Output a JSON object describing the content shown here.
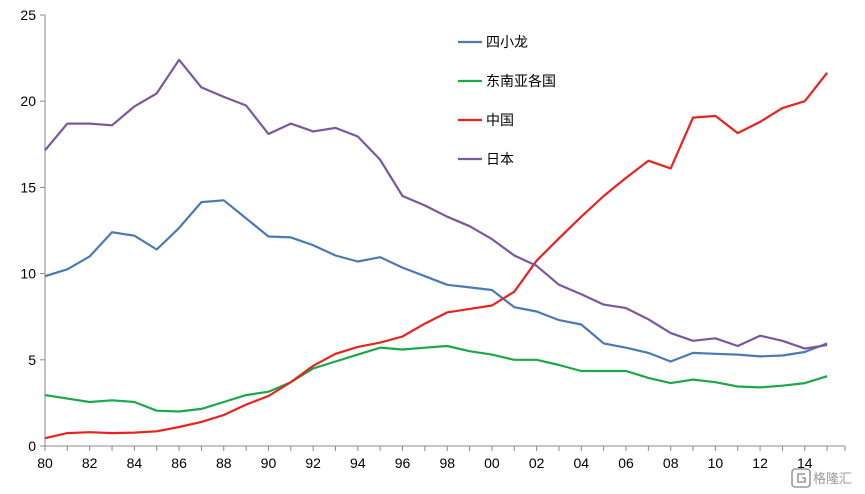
{
  "chart_data": {
    "type": "line",
    "title": "",
    "xlabel": "",
    "ylabel": "",
    "x": [
      1980,
      1981,
      1982,
      1983,
      1984,
      1985,
      1986,
      1987,
      1988,
      1989,
      1990,
      1991,
      1992,
      1993,
      1994,
      1995,
      1996,
      1997,
      1998,
      1999,
      2000,
      2001,
      2002,
      2003,
      2004,
      2005,
      2006,
      2007,
      2008,
      2009,
      2010,
      2011,
      2012,
      2013,
      2014,
      2015
    ],
    "x_tick_labels": [
      "80",
      "82",
      "84",
      "86",
      "88",
      "90",
      "92",
      "94",
      "96",
      "98",
      "00",
      "02",
      "04",
      "06",
      "08",
      "10",
      "12",
      "14"
    ],
    "y_ticks": [
      "0",
      "5",
      "10",
      "15",
      "20",
      "25"
    ],
    "ylim": [
      0,
      25
    ],
    "xlim": [
      1980,
      2015.8
    ],
    "grid": false,
    "legend_position": "upper-center",
    "series": [
      {
        "name": "四小龙",
        "color": "#4a7ab5",
        "values": [
          9.85,
          10.25,
          11.0,
          12.4,
          12.2,
          11.4,
          12.65,
          14.15,
          14.25,
          13.2,
          12.15,
          12.1,
          11.65,
          11.05,
          10.7,
          10.95,
          10.35,
          9.85,
          9.35,
          9.2,
          9.05,
          8.05,
          7.8,
          7.3,
          7.05,
          5.95,
          5.7,
          5.4,
          4.9,
          5.4,
          5.35,
          5.3,
          5.2,
          5.25,
          5.45,
          5.95
        ]
      },
      {
        "name": "东南亚各国",
        "color": "#1aa84a",
        "values": [
          2.95,
          2.75,
          2.55,
          2.65,
          2.55,
          2.05,
          2.0,
          2.15,
          2.55,
          2.95,
          3.15,
          3.7,
          4.5,
          4.9,
          5.3,
          5.7,
          5.6,
          5.7,
          5.8,
          5.5,
          5.3,
          5.0,
          5.0,
          4.7,
          4.35,
          4.35,
          4.35,
          3.95,
          3.65,
          3.85,
          3.7,
          3.45,
          3.4,
          3.5,
          3.65,
          4.05
        ]
      },
      {
        "name": "中国",
        "color": "#e8231e",
        "values": [
          0.45,
          0.75,
          0.8,
          0.75,
          0.78,
          0.85,
          1.1,
          1.4,
          1.8,
          2.4,
          2.9,
          3.7,
          4.65,
          5.35,
          5.75,
          6.0,
          6.35,
          7.1,
          7.75,
          7.95,
          8.15,
          8.95,
          10.75,
          12.05,
          13.3,
          14.5,
          15.55,
          16.55,
          16.1,
          19.05,
          19.15,
          18.15,
          18.8,
          19.6,
          20.0,
          21.65
        ]
      },
      {
        "name": "日本",
        "color": "#7b57a0",
        "values": [
          17.15,
          18.7,
          18.7,
          18.6,
          19.7,
          20.45,
          22.4,
          20.8,
          20.25,
          19.75,
          18.1,
          18.7,
          18.25,
          18.45,
          17.95,
          16.6,
          14.5,
          13.95,
          13.3,
          12.75,
          12.0,
          11.05,
          10.45,
          9.35,
          8.8,
          8.2,
          8.0,
          7.35,
          6.55,
          6.1,
          6.25,
          5.8,
          6.4,
          6.1,
          5.65,
          5.85
        ]
      }
    ]
  },
  "watermark": {
    "text": "格隆汇",
    "icon": "logo-icon"
  }
}
